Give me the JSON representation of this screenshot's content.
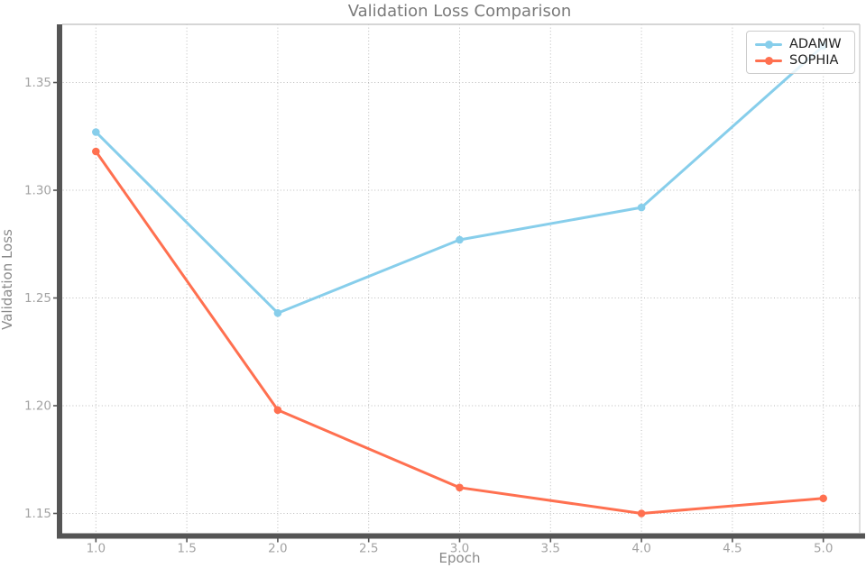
{
  "chart_data": {
    "type": "line",
    "title": "Validation Loss Comparison",
    "xlabel": "Epoch",
    "ylabel": "Validation Loss",
    "x": [
      1,
      2,
      3,
      4,
      5
    ],
    "series": [
      {
        "name": "ADAMW",
        "color": "#87CEEB",
        "values": [
          1.327,
          1.243,
          1.277,
          1.292,
          1.367
        ]
      },
      {
        "name": "SOPHIA",
        "color": "#FF7050",
        "values": [
          1.318,
          1.198,
          1.162,
          1.15,
          1.157
        ]
      }
    ],
    "xlim": [
      0.8,
      5.2
    ],
    "ylim": [
      1.141,
      1.377
    ],
    "xticks": {
      "values": [
        1,
        1.5,
        2,
        2.5,
        3,
        3.5,
        4,
        4.5,
        5
      ],
      "labels": [
        "1.0",
        "1.5",
        "2.0",
        "2.5",
        "3.0",
        "3.5",
        "4.0",
        "4.5",
        "5.0"
      ]
    },
    "yticks": {
      "values": [
        1.15,
        1.2,
        1.25,
        1.3,
        1.35
      ],
      "labels": [
        "1.15",
        "1.20",
        "1.25",
        "1.30",
        "1.35"
      ]
    },
    "grid": true,
    "legend_position": "top-right",
    "style": {
      "spine_dark": "#555555",
      "spine_light": "#c9c9c9",
      "grid_color": "#bbbbbb",
      "tick_label_color": "#a3a3a3",
      "title_color": "#7a7a7a",
      "axis_label_color": "#8a8a8a",
      "legend_text_color": "#1f1f1f",
      "legend_border_color": "#cccccc"
    }
  }
}
